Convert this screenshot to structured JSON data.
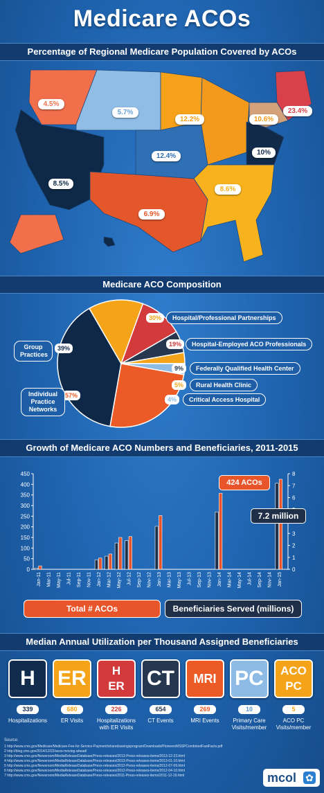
{
  "title": "Medicare ACOs",
  "sections": {
    "map": "Percentage of Regional Medicare Population Covered by ACOs",
    "pie": "Medicare ACO Composition",
    "growth": "Growth of Medicare ACO Numbers and Beneficiaries, 2011-2015",
    "util": "Median Annual Utilization per Thousand Assigned Beneficiaries"
  },
  "map": {
    "regions": [
      {
        "name": "Pacific Northwest",
        "value": "4.5%",
        "color": "#f26f4c"
      },
      {
        "name": "Mountain North",
        "value": "5.7%",
        "color": "#8fbde6"
      },
      {
        "name": "Upper Midwest",
        "value": "12.2%",
        "color": "#f5a21a"
      },
      {
        "name": "Great Lakes",
        "value": "10.6%",
        "color": "#f39a1d"
      },
      {
        "name": "New England",
        "value": "23.4%",
        "color": "#d8404a"
      },
      {
        "name": "Mid Atlantic",
        "value": "10%",
        "color": "#122a4a"
      },
      {
        "name": "Central Plains",
        "value": "12.4%",
        "color": "#2f6fb4"
      },
      {
        "name": "West",
        "value": "8.5%",
        "color": "#0e2847"
      },
      {
        "name": "South Central",
        "value": "6.9%",
        "color": "#e4572b"
      },
      {
        "name": "Southeast",
        "value": "8.6%",
        "color": "#f7b21d"
      }
    ]
  },
  "pie": {
    "slices": [
      {
        "pct": "39%",
        "label": "Group Practices",
        "color": "#0f2848"
      },
      {
        "pct": "30%",
        "label": "Hospital/Professional Partnerships",
        "color": "#f5a318"
      },
      {
        "pct": "19%",
        "label": "Hospital-Employed ACO Professionals",
        "color": "#d33a3c"
      },
      {
        "pct": "9%",
        "label": "Federally Qualified Health Center",
        "color": "#26374f"
      },
      {
        "pct": "5%",
        "label": "Rural Health Clinic",
        "color": "#f5a318"
      },
      {
        "pct": "4%",
        "label": "Critical Access Hospital",
        "color": "#8dbbe6"
      },
      {
        "pct": "57%",
        "label": "Individual Practice Networks",
        "color": "#ec5a26"
      }
    ]
  },
  "chart_data": {
    "type": "bar",
    "title": "Growth of Medicare ACO Numbers and Beneficiaries, 2011-2015",
    "categories": [
      "Jan-11",
      "Mar-11",
      "May-11",
      "Jul-11",
      "Sep-11",
      "Nov-11",
      "Jan-12",
      "Mar-12",
      "May-12",
      "Jul-12",
      "Sep-12",
      "Nov-12",
      "Jan-13",
      "Mar-13",
      "May-13",
      "Jul-13",
      "Sep-13",
      "Nov-13",
      "Jan-14",
      "Mar-14",
      "May-14",
      "Jul-14",
      "Sep-14",
      "Nov-14",
      "Jan-15"
    ],
    "series": [
      {
        "name": "Total # ACOs",
        "axis": "left",
        "color": "#e8552b",
        "values": [
          16,
          0,
          0,
          0,
          0,
          0,
          53,
          72,
          150,
          154,
          0,
          0,
          253,
          0,
          0,
          0,
          0,
          0,
          358,
          0,
          0,
          0,
          0,
          0,
          424
        ]
      },
      {
        "name": "Beneficiaries Served (millions)",
        "axis": "right",
        "color": "#1f2f48",
        "values": [
          0.1,
          0,
          0,
          0,
          0,
          0,
          0.8,
          1.1,
          2.2,
          2.4,
          0,
          0,
          3.6,
          0,
          0,
          0,
          0,
          0,
          4.8,
          0,
          0,
          0,
          0,
          0,
          7.2
        ]
      }
    ],
    "ylim_left": [
      0,
      450
    ],
    "left_ticks": [
      0,
      50,
      100,
      150,
      200,
      250,
      300,
      350,
      400,
      450
    ],
    "ylim_right": [
      0,
      8
    ],
    "right_ticks": [
      0,
      1,
      2,
      3,
      4,
      5,
      6,
      7,
      8
    ],
    "annotations": [
      "424 ACOs",
      "7.2 million"
    ],
    "legend": [
      "Total # ACOs",
      "Beneficiaries Served (millions)"
    ]
  },
  "util": {
    "items": [
      {
        "icon_text": "H",
        "value": "339",
        "caption": "Hospitalizations",
        "bg": "#112b4c"
      },
      {
        "icon_text": "ER",
        "value": "680",
        "caption": "ER Visits",
        "bg": "#f5a318"
      },
      {
        "icon_text": "H ER",
        "value": "226",
        "caption": "Hospitalizations with ER Visits",
        "bg": "#d33a3c"
      },
      {
        "icon_text": "CT",
        "value": "654",
        "caption": "CT Events",
        "bg": "#26374f"
      },
      {
        "icon_text": "MRI",
        "value": "269",
        "caption": "MRI Events",
        "bg": "#ec5a26"
      },
      {
        "icon_text": "PC",
        "value": "10",
        "caption": "Primary Care Visits/member",
        "bg": "#8dbbe6"
      },
      {
        "icon_text": "ACO PC",
        "value": "5",
        "caption": "ACO PC Visits/member",
        "bg": "#f5a318"
      }
    ]
  },
  "sources": {
    "heading": "Source:",
    "lines": [
      "1  http://www.cms.gov/Medicare/Medicare-Fee-for-Service-Payment/sharedsavingsprogram/Downloads/PioneersMSSPCombinedFastFacts.pdf",
      "2  http://blog.cms.gov/2014/12/22/acos-moving-ahead/",
      "3  http://www.cms.gov/Newsroom/MediaReleaseDatabase/Press-releases/2013-Press-releases-items/2013-12-23.html",
      "4  http://www.cms.gov/Newsroom/MediaReleaseDatabase/Press-releases/2013-Press-releases-items/2013-01-10.html",
      "5  http://www.cms.gov/Newsroom/MediaReleaseDatabase/Press-releases/2012-Press-releases-items/2012-07-09.html",
      "6  http://www.cms.gov/Newsroom/MediaReleaseDatabase/Press-releases/2012-Press-releases-items/2012-04-10.html",
      "7  http://www.cms.gov/Newsroom/MediaReleaseDatabase/Press-releases/2011-Press-releases-items/2011-12-19.html"
    ]
  },
  "brand": "mcol"
}
